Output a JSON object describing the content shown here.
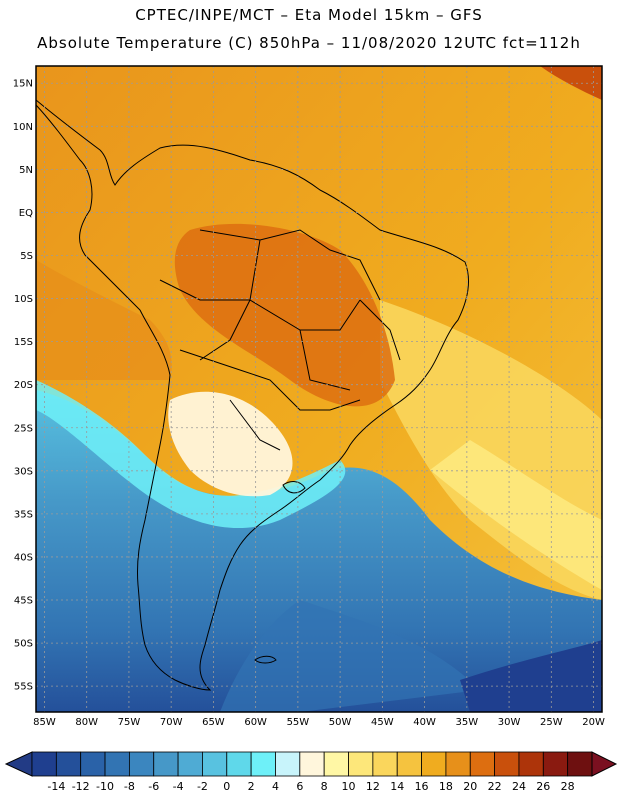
{
  "header": {
    "line1": "CPTEC/INPE/MCT –  Eta Model 15km – GFS",
    "line2": "Absolute Temperature (C) 850hPa – 11/08/2020 12UTC fct=112h"
  },
  "map": {
    "lat_labels": [
      "15N",
      "10N",
      "5N",
      "EQ",
      "5S",
      "10S",
      "15S",
      "20S",
      "25S",
      "30S",
      "35S",
      "40S",
      "45S",
      "50S",
      "55S"
    ],
    "lat_values": [
      15,
      10,
      5,
      0,
      -5,
      -10,
      -15,
      -20,
      -25,
      -30,
      -35,
      -40,
      -45,
      -50,
      -55
    ],
    "lon_labels": [
      "85W",
      "80W",
      "75W",
      "70W",
      "65W",
      "60W",
      "55W",
      "50W",
      "45W",
      "40W",
      "35W",
      "30W",
      "25W",
      "20W"
    ],
    "lon_values": [
      -85,
      -80,
      -75,
      -70,
      -65,
      -60,
      -55,
      -50,
      -45,
      -40,
      -35,
      -30,
      -25,
      -20
    ],
    "lat_range": [
      -58,
      17
    ],
    "lon_range": [
      -86,
      -19
    ]
  },
  "colorbar": {
    "labels": [
      "-14",
      "-12",
      "-10",
      "-8",
      "-6",
      "-4",
      "-2",
      "0",
      "2",
      "4",
      "6",
      "8",
      "10",
      "12",
      "14",
      "16",
      "18",
      "20",
      "22",
      "24",
      "26",
      "28"
    ],
    "colors": [
      "#1f3f8f",
      "#24509a",
      "#2a62a8",
      "#3274b3",
      "#3b86bf",
      "#4698c8",
      "#4fabd4",
      "#58c2e0",
      "#5fd8ea",
      "#6ef0f8",
      "#c8f4fb",
      "#fff6dc",
      "#fff7a5",
      "#fde77a",
      "#fad65c",
      "#f5c33f",
      "#f0ac1f",
      "#e7901a",
      "#dd6e10",
      "#c9500c",
      "#ad340a",
      "#8a1a10",
      "#6e1010"
    ],
    "under_color": "#223b85",
    "over_color": "#7a1020"
  }
}
